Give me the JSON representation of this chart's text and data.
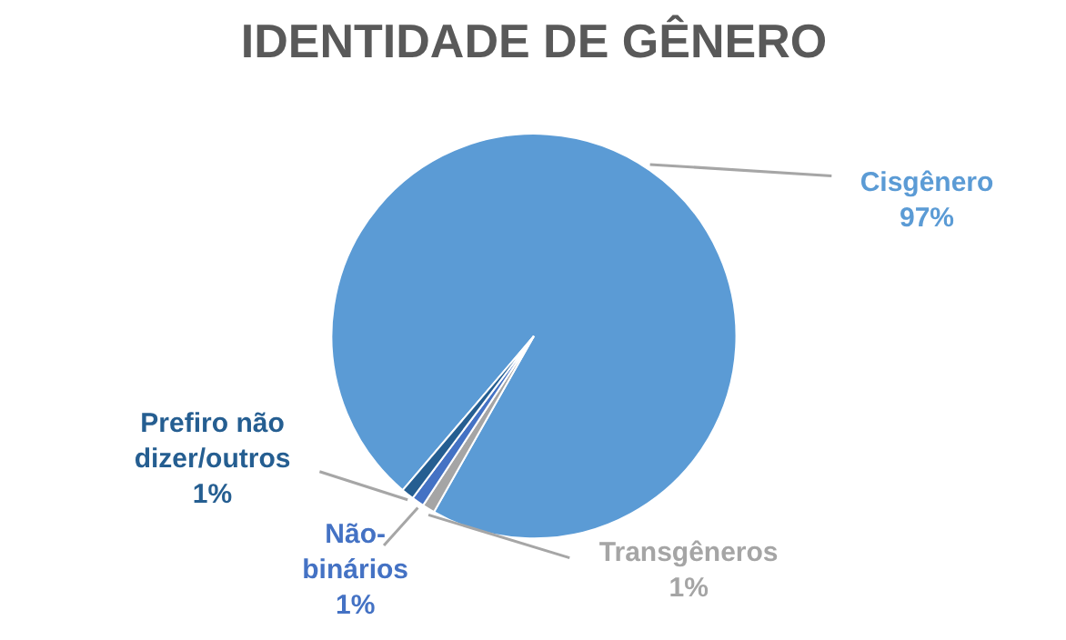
{
  "chart_data": {
    "type": "pie",
    "title": "IDENTIDADE DE GÊNERO",
    "categories": [
      "Cisgênero",
      "Transgêneros",
      "Não-binários",
      "Prefiro não dizer/outros"
    ],
    "values": [
      97,
      1,
      1,
      1
    ],
    "value_labels": [
      "97%",
      "1%",
      "1%",
      "1%"
    ],
    "colors": [
      "#5b9bd5",
      "#a5a5a5",
      "#4472c4",
      "#255e91"
    ]
  }
}
